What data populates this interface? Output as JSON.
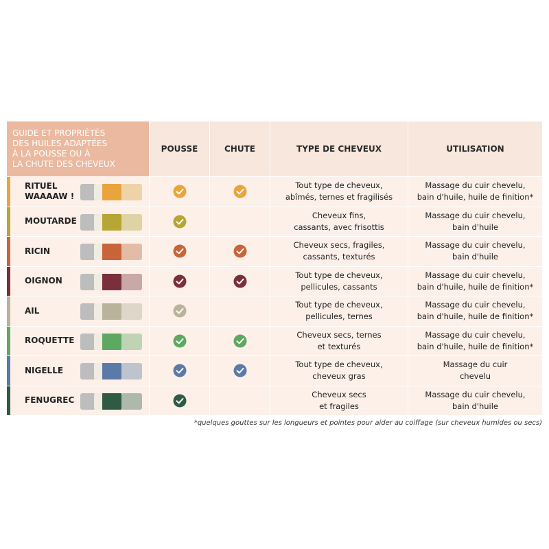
{
  "header": {
    "title": [
      "GUIDE ET PROPRIÉTÉS",
      "DES HUILES ADAPTÉES",
      "À LA POUSSE OU À",
      "LA CHUTE DES CHEVEUX"
    ],
    "columns": [
      "POUSSE",
      "CHUTE",
      "TYPE DE CHEVEUX",
      "UTILISATION"
    ]
  },
  "rows": [
    {
      "name": [
        "RITUEL",
        "WAAAAW !"
      ],
      "color": "#e9a43c",
      "pousse": true,
      "chute": true,
      "type": [
        "Tout type de cheveux,",
        "abîmés, ternes et fragilisés"
      ],
      "utilisation": [
        "Massage du cuir chevelu,",
        "bain d'huile, huile de finition*"
      ]
    },
    {
      "name": [
        "MOUTARDE"
      ],
      "color": "#b7a534",
      "pousse": true,
      "chute": false,
      "type": [
        "Cheveux fins,",
        "cassants, avec frisottis"
      ],
      "utilisation": [
        "Massage du cuir chevelu,",
        "bain d'huile"
      ]
    },
    {
      "name": [
        "RICIN"
      ],
      "color": "#c9643a",
      "pousse": true,
      "chute": true,
      "type": [
        "Cheveux secs, fragiles,",
        "cassants, texturés"
      ],
      "utilisation": [
        "Massage du cuir chevelu,",
        "bain d'huile"
      ]
    },
    {
      "name": [
        "OIGNON"
      ],
      "color": "#7b2e3b",
      "pousse": true,
      "chute": true,
      "type": [
        "Tout type de cheveux,",
        "pellicules, cassants"
      ],
      "utilisation": [
        "Massage du cuir chevelu,",
        "bain d'huile, huile de finition*"
      ]
    },
    {
      "name": [
        "AIL"
      ],
      "color": "#b9b39b",
      "pousse": true,
      "chute": false,
      "type": [
        "Tout type de cheveux,",
        "pellicules, ternes"
      ],
      "utilisation": [
        "Massage du cuir chevelu,",
        "bain d'huile, huile de finition*"
      ]
    },
    {
      "name": [
        "ROQUETTE"
      ],
      "color": "#5fa862",
      "pousse": true,
      "chute": true,
      "type": [
        "Cheveux secs, ternes",
        "et texturés"
      ],
      "utilisation": [
        "Massage du cuir chevelu,",
        "bain d'huile, huile de finition*"
      ]
    },
    {
      "name": [
        "NIGELLE"
      ],
      "color": "#5c7aa8",
      "pousse": true,
      "chute": true,
      "type": [
        "Tout type de cheveux,",
        "cheveux gras"
      ],
      "utilisation": [
        "Massage du cuir",
        "chevelu"
      ]
    },
    {
      "name": [
        "FENUGREC"
      ],
      "color": "#2f5b45",
      "pousse": true,
      "chute": false,
      "type": [
        "Cheveux secs",
        "et fragiles"
      ],
      "utilisation": [
        "Massage du cuir chevelu,",
        "bain d'huile"
      ]
    }
  ],
  "footnote": "*quelques gouttes sur les longueurs et pointes pour aider au coiffage (sur cheveux humides ou secs)"
}
